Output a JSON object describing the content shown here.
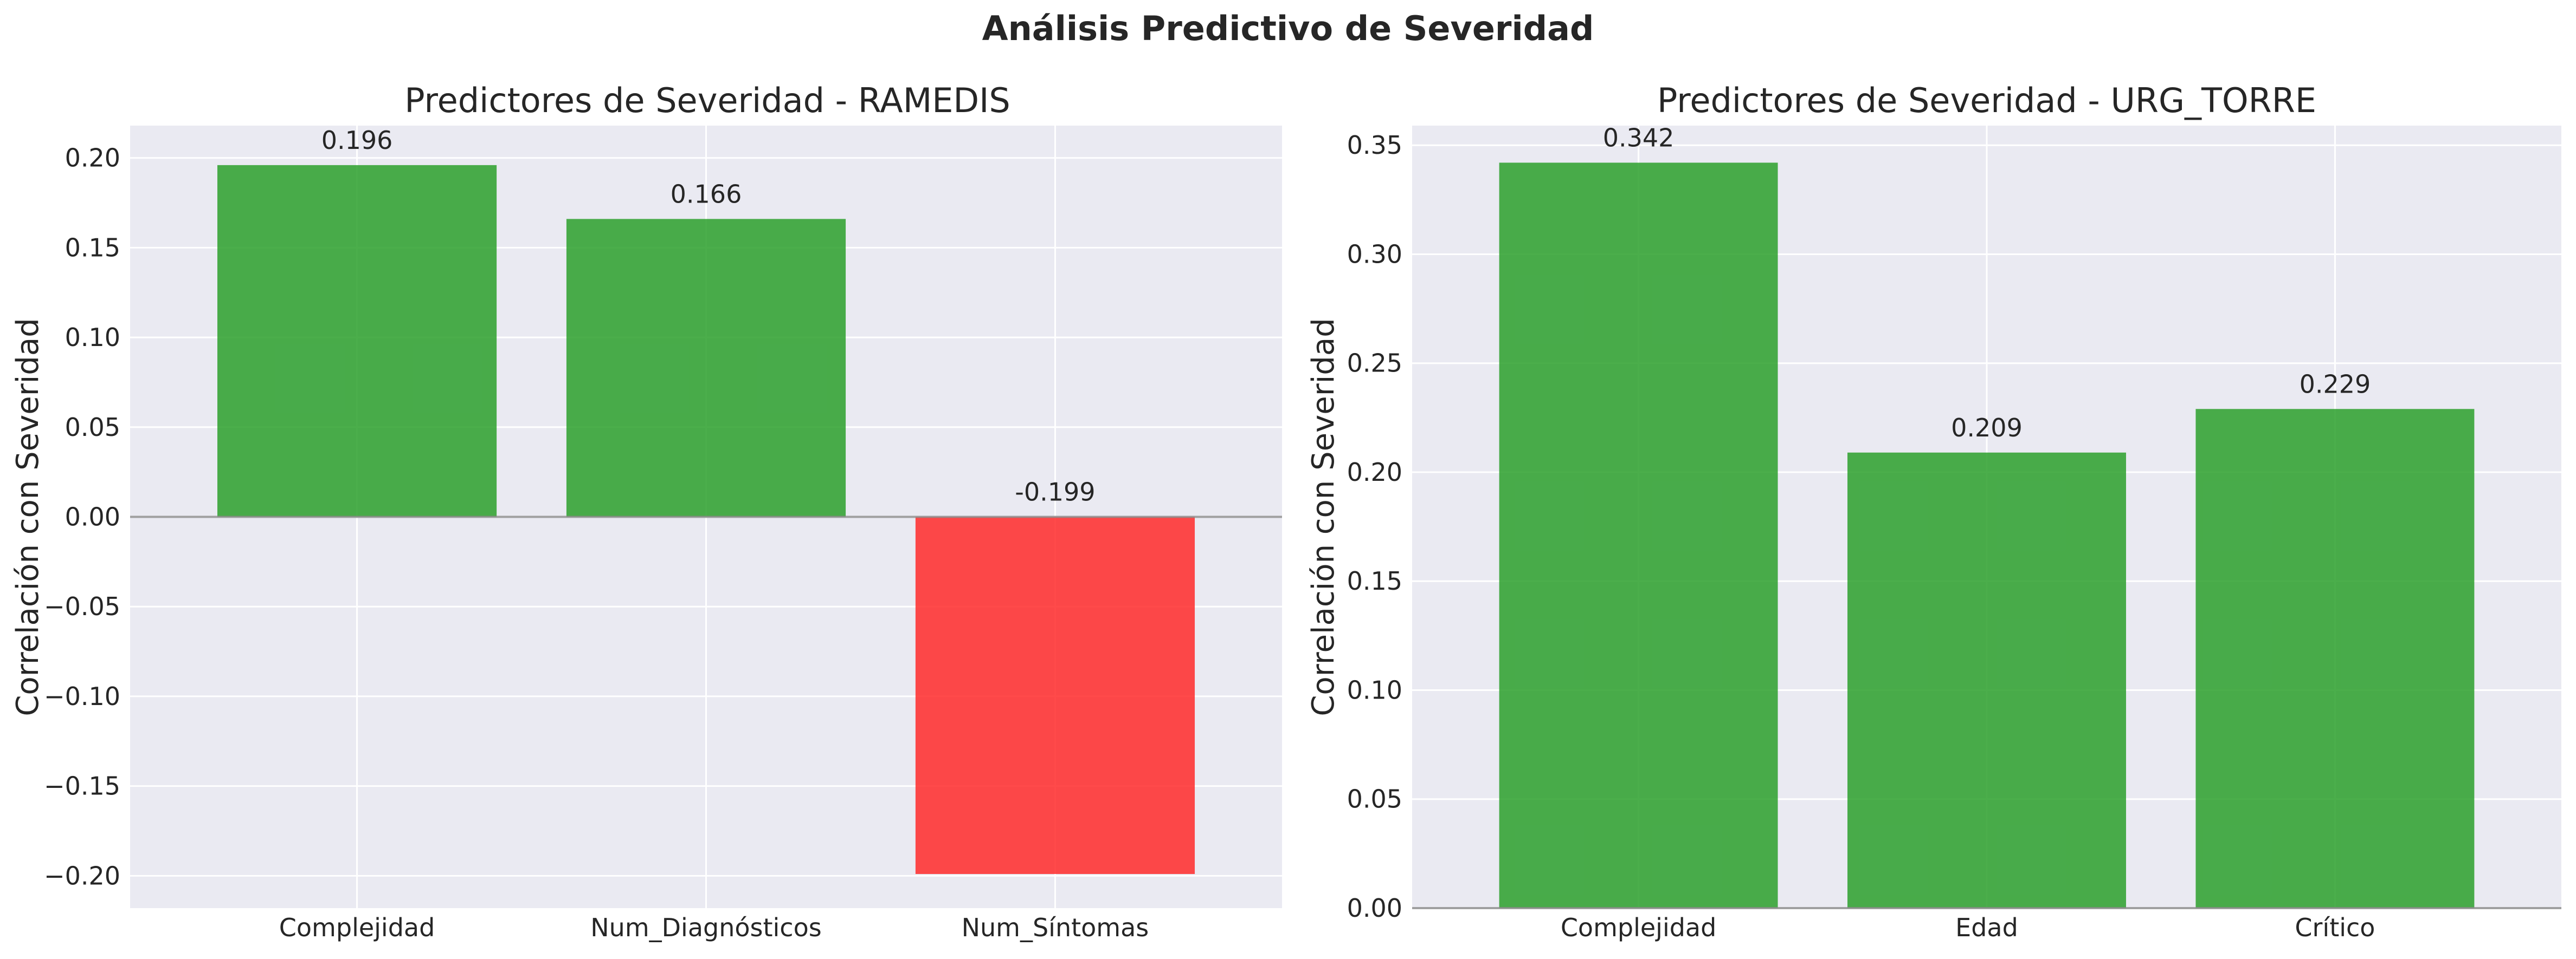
{
  "figure": {
    "title": "Análisis Predictivo de Severidad"
  },
  "colors": {
    "background": "#eaeaf2",
    "grid": "#ffffff",
    "positive": "#2ca02c",
    "negative": "#ff2a2a",
    "zero_line": "#888888"
  },
  "chart_data": [
    {
      "type": "bar",
      "title": "Predictores de Severidad - RAMEDIS",
      "xlabel": "",
      "ylabel": "Correlación con Severidad",
      "categories": [
        "Complejidad",
        "Num_Diagnósticos",
        "Num_Síntomas"
      ],
      "values": [
        0.196,
        0.166,
        -0.199
      ],
      "value_labels": [
        "0.196",
        "0.166",
        "-0.199"
      ],
      "ylim": [
        -0.218,
        0.218
      ],
      "yticks": [
        -0.2,
        -0.15,
        -0.1,
        -0.05,
        0.0,
        0.05,
        0.1,
        0.15,
        0.2
      ],
      "ytick_labels": [
        "−0.20",
        "−0.15",
        "−0.10",
        "−0.05",
        "0.00",
        "0.05",
        "0.10",
        "0.15",
        "0.20"
      ],
      "grid": true,
      "legend": "none"
    },
    {
      "type": "bar",
      "title": "Predictores de Severidad - URG_TORRE",
      "xlabel": "",
      "ylabel": "Correlación con Severidad",
      "categories": [
        "Complejidad",
        "Edad",
        "Crítico"
      ],
      "values": [
        0.342,
        0.209,
        0.229
      ],
      "value_labels": [
        "0.342",
        "0.209",
        "0.229"
      ],
      "ylim": [
        0.0,
        0.359
      ],
      "yticks": [
        0.0,
        0.05,
        0.1,
        0.15,
        0.2,
        0.25,
        0.3,
        0.35
      ],
      "ytick_labels": [
        "0.00",
        "0.05",
        "0.10",
        "0.15",
        "0.20",
        "0.25",
        "0.30",
        "0.35"
      ],
      "grid": true,
      "legend": "none"
    }
  ]
}
